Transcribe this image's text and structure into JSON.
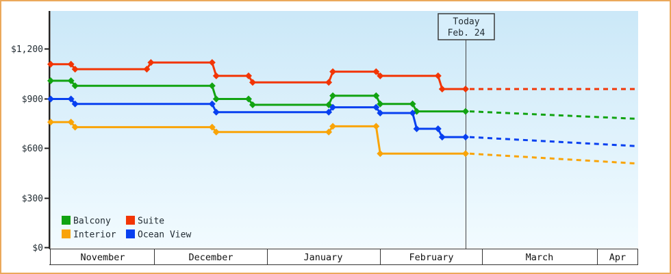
{
  "widget_title": "price-history-chart",
  "colors": {
    "frame_border": "#eba85b",
    "plot_bg_top": "#cbe8f8",
    "plot_bg_bottom": "#f2fbff",
    "axis": "#222222",
    "band_line": "#333333",
    "today_line": "#444444",
    "today_box_fill": "#d7eefb",
    "today_box_border": "#3a3a3a",
    "text": "#222c33"
  },
  "chart_data": {
    "type": "line",
    "style": "stepped price history with diamond markers, dotted forecast after today",
    "grid": "off",
    "y_axis": {
      "min": 0,
      "max_tick": 1200,
      "ticks": [
        {
          "label": "$1,200",
          "value": 1200
        },
        {
          "label": "$900",
          "value": 900
        },
        {
          "label": "$600",
          "value": 600
        },
        {
          "label": "$300",
          "value": 300
        },
        {
          "label": "$0",
          "value": 0
        }
      ]
    },
    "x_axis": {
      "months": [
        {
          "label": "November",
          "abbr": "Nov",
          "days": 30,
          "x_start": 72,
          "x_end": 223
        },
        {
          "label": "December",
          "abbr": "Dec",
          "days": 31,
          "x_start": 223,
          "x_end": 388
        },
        {
          "label": "January",
          "abbr": "Jan",
          "days": 31,
          "x_start": 388,
          "x_end": 553
        },
        {
          "label": "February",
          "abbr": "Feb",
          "days": 28,
          "x_start": 553,
          "x_end": 702
        },
        {
          "label": "March",
          "abbr": "Mar",
          "days": 31,
          "x_start": 702,
          "x_end": 870
        },
        {
          "label": "Apr",
          "abbr": "Apr",
          "days": 30,
          "x_start": 870,
          "x_end": 1033
        }
      ],
      "plot_x_end": 930
    },
    "today": {
      "label_line1": "Today",
      "label_line2": "Feb. 24",
      "date": "Feb 24"
    },
    "series": [
      {
        "name": "Balcony",
        "color": "#12a312",
        "points": [
          {
            "date": "Nov 1",
            "price": 1010
          },
          {
            "date": "Nov 7",
            "price": 980
          },
          {
            "date": "Dec 17",
            "price": 900
          },
          {
            "date": "Dec 27",
            "price": 865
          },
          {
            "date": "Jan 18",
            "price": 920
          },
          {
            "date": "Jan 31",
            "price": 870
          },
          {
            "date": "Feb 10",
            "price": 825
          }
        ],
        "forecast_end_price": 780
      },
      {
        "name": "Suite",
        "color": "#f23505",
        "points": [
          {
            "date": "Nov 1",
            "price": 1110
          },
          {
            "date": "Nov 7",
            "price": 1080
          },
          {
            "date": "Nov 29",
            "price": 1120
          },
          {
            "date": "Dec 17",
            "price": 1040
          },
          {
            "date": "Dec 27",
            "price": 1000
          },
          {
            "date": "Jan 18",
            "price": 1065
          },
          {
            "date": "Jan 31",
            "price": 1040
          },
          {
            "date": "Feb 17",
            "price": 960
          }
        ],
        "forecast_end_price": 960
      },
      {
        "name": "Interior",
        "color": "#f9a408",
        "points": [
          {
            "date": "Nov 1",
            "price": 760
          },
          {
            "date": "Nov 7",
            "price": 730
          },
          {
            "date": "Dec 17",
            "price": 700
          },
          {
            "date": "Jan 18",
            "price": 735
          },
          {
            "date": "Jan 31",
            "price": 570
          }
        ],
        "forecast_end_price": 510
      },
      {
        "name": "Ocean View",
        "color": "#0840f0",
        "points": [
          {
            "date": "Nov 1",
            "price": 900
          },
          {
            "date": "Nov 7",
            "price": 870
          },
          {
            "date": "Dec 17",
            "price": 820
          },
          {
            "date": "Jan 18",
            "price": 850
          },
          {
            "date": "Jan 31",
            "price": 815
          },
          {
            "date": "Feb 10",
            "price": 720
          },
          {
            "date": "Feb 17",
            "price": 670
          }
        ],
        "forecast_end_price": 615
      }
    ],
    "legend": {
      "position": "bottom-left inside plot",
      "rows": [
        [
          "Balcony",
          "Suite"
        ],
        [
          "Interior",
          "Ocean View"
        ]
      ]
    }
  }
}
